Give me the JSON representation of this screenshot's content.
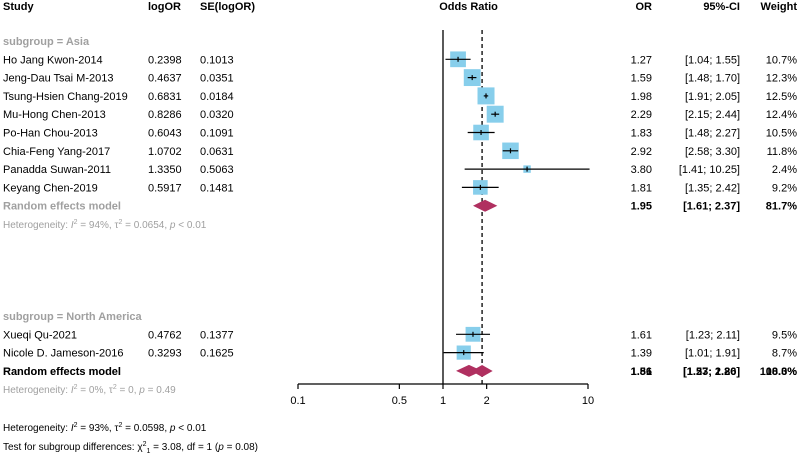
{
  "columns": {
    "study": "Study",
    "logor": "logOR",
    "se": "SE(logOR)",
    "plot": "Odds Ratio",
    "or": "OR",
    "ci": "95%-CI",
    "weight": "Weight"
  },
  "chart_data": {
    "type": "forest",
    "title": "Odds Ratio",
    "xscale": "log",
    "xlim": [
      0.1,
      10
    ],
    "xticks": [
      0.1,
      0.5,
      1,
      2,
      10
    ],
    "xticklabels": [
      "0.1",
      "0.5",
      "1",
      "2",
      "10"
    ],
    "null_line": 1,
    "overall_line": 1.86,
    "subgroups": [
      {
        "label": "subgroup = Asia",
        "studies": [
          {
            "name": "Ho Jang Kwon-2014",
            "logor": "0.2398",
            "se": "0.1013",
            "or": 1.27,
            "lo": 1.04,
            "hi": 1.55,
            "or_text": "1.27",
            "ci_text": "[1.04;  1.55]",
            "weight": "10.7%",
            "w": 10.7
          },
          {
            "name": "Jeng-Dau Tsai M-2013",
            "logor": "0.4637",
            "se": "0.0351",
            "or": 1.59,
            "lo": 1.48,
            "hi": 1.7,
            "or_text": "1.59",
            "ci_text": "[1.48;  1.70]",
            "weight": "12.3%",
            "w": 12.3
          },
          {
            "name": "Tsung-Hsien Chang-2019",
            "logor": "0.6831",
            "se": "0.0184",
            "or": 1.98,
            "lo": 1.91,
            "hi": 2.05,
            "or_text": "1.98",
            "ci_text": "[1.91;  2.05]",
            "weight": "12.5%",
            "w": 12.5
          },
          {
            "name": "Mu-Hong Chen-2013",
            "logor": "0.8286",
            "se": "0.0320",
            "or": 2.29,
            "lo": 2.15,
            "hi": 2.44,
            "or_text": "2.29",
            "ci_text": "[2.15;  2.44]",
            "weight": "12.4%",
            "w": 12.4
          },
          {
            "name": "Po-Han Chou-2013",
            "logor": "0.6043",
            "se": "0.1091",
            "or": 1.83,
            "lo": 1.48,
            "hi": 2.27,
            "or_text": "1.83",
            "ci_text": "[1.48;  2.27]",
            "weight": "10.5%",
            "w": 10.5
          },
          {
            "name": "Chia-Feng Yang-2017",
            "logor": "1.0702",
            "se": "0.0631",
            "or": 2.92,
            "lo": 2.58,
            "hi": 3.3,
            "or_text": "2.92",
            "ci_text": "[2.58;  3.30]",
            "weight": "11.8%",
            "w": 11.8
          },
          {
            "name": "Panadda Suwan-2011",
            "logor": "1.3350",
            "se": "0.5063",
            "or": 3.8,
            "lo": 1.41,
            "hi": 10.25,
            "or_text": "3.80",
            "ci_text": "[1.41; 10.25]",
            "weight": "2.4%",
            "w": 2.4
          },
          {
            "name": "Keyang Chen-2019",
            "logor": "0.5917",
            "se": "0.1481",
            "or": 1.81,
            "lo": 1.35,
            "hi": 2.42,
            "or_text": "1.81",
            "ci_text": "[1.35;  2.42]",
            "weight": "9.2%",
            "w": 9.2
          }
        ],
        "pooled": {
          "label": "Random effects model",
          "or": 1.95,
          "lo": 1.61,
          "hi": 2.37,
          "or_text": "1.95",
          "ci_text": "[1.61;  2.37]",
          "weight": "81.7%"
        },
        "heterogeneity": {
          "prefix": "Heterogeneity: ",
          "i2_symbol": "I",
          "i2_sup": "2",
          "i2_value": " = 94%, ",
          "tau_symbol": "τ",
          "tau_sup": "2",
          "tau_value": " = 0.0654, ",
          "p_symbol": "p",
          "p_value": " < 0.01"
        }
      },
      {
        "label": "subgroup = North America",
        "studies": [
          {
            "name": "Xueqi Qu-2021",
            "logor": "0.4762",
            "se": "0.1377",
            "or": 1.61,
            "lo": 1.23,
            "hi": 2.11,
            "or_text": "1.61",
            "ci_text": "[1.23;  2.11]",
            "weight": "9.5%",
            "w": 9.5
          },
          {
            "name": "Nicole D. Jameson-2016",
            "logor": "0.3293",
            "se": "0.1625",
            "or": 1.39,
            "lo": 1.01,
            "hi": 1.91,
            "or_text": "1.39",
            "ci_text": "[1.01;  1.91]",
            "weight": "8.7%",
            "w": 8.7
          }
        ],
        "pooled": {
          "label": "Random effects model",
          "or": 1.51,
          "lo": 1.23,
          "hi": 1.86,
          "or_text": "1.51",
          "ci_text": "[1.23;  1.86]",
          "weight": "18.3%"
        },
        "heterogeneity": {
          "prefix": "Heterogeneity: ",
          "i2_symbol": "I",
          "i2_sup": "2",
          "i2_value": " = 0%, ",
          "tau_symbol": "τ",
          "tau_sup": "2",
          "tau_value": " = 0, ",
          "p_symbol": "p",
          "p_value": " = 0.49"
        }
      }
    ],
    "overall": {
      "label": "Random effects model",
      "or": 1.86,
      "lo": 1.57,
      "hi": 2.2,
      "or_text": "1.86",
      "ci_text": "[1.57;  2.20]",
      "weight": "100.0%"
    },
    "overall_heterogeneity": {
      "prefix": "Heterogeneity: ",
      "i2_symbol": "I",
      "i2_sup": "2",
      "i2_value": " = 93%, ",
      "tau_symbol": "τ",
      "tau_sup": "2",
      "tau_value": " = 0.0598, ",
      "p_symbol": "p",
      "p_value": " < 0.01"
    },
    "subgroup_test": {
      "prefix": "Test for subgroup differences: ",
      "chi_symbol": "χ",
      "chi_sup": "2",
      "chi_sub": "1",
      "chi_value": " = 3.08, df = 1 (",
      "p_symbol": "p",
      "p_value": " = 0.08)"
    }
  },
  "colors": {
    "square": "#87CEEB",
    "diamond": "#B03060",
    "grey_text": "#A0A0A0",
    "line": "#000000"
  }
}
